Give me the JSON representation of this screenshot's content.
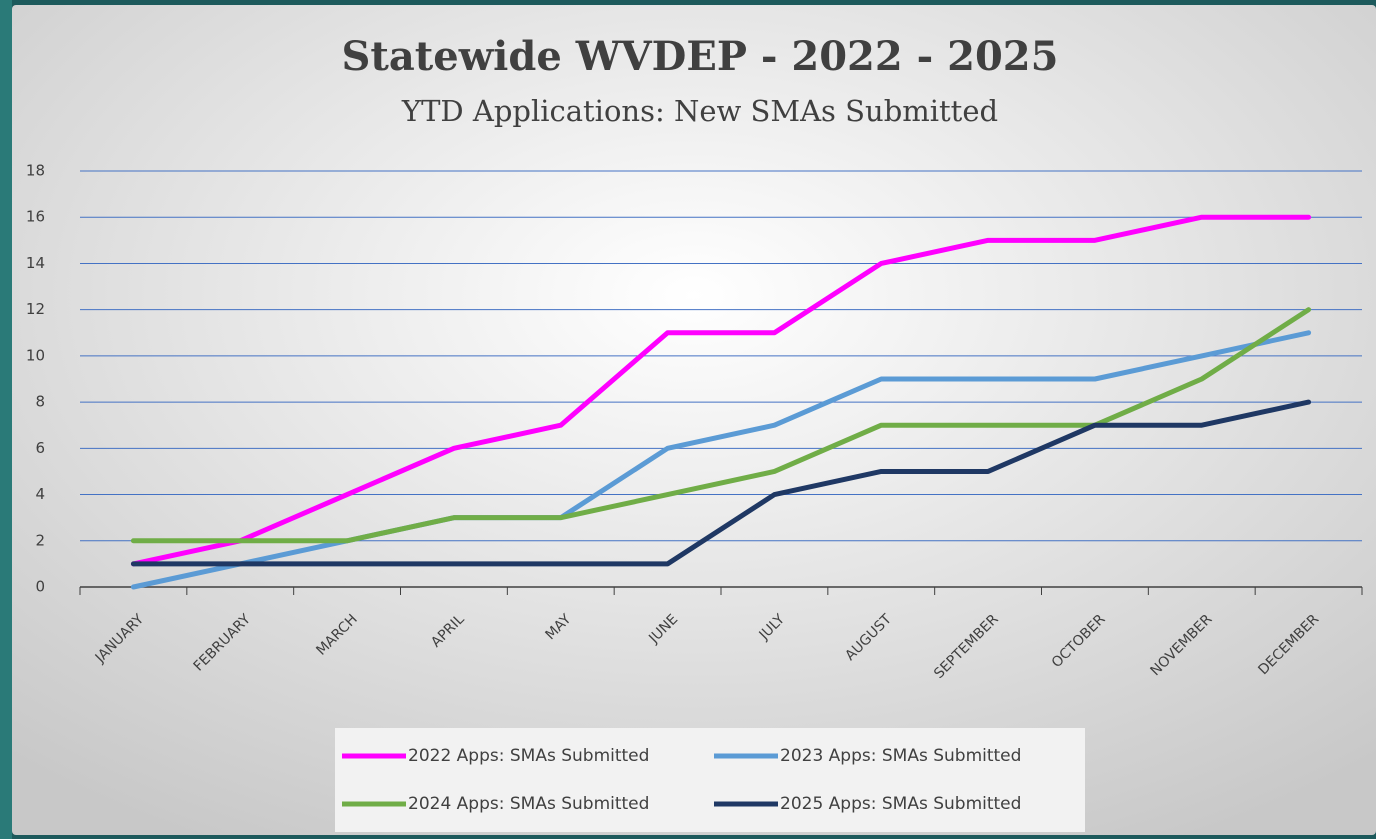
{
  "chart_data": {
    "type": "line",
    "title": "Statewide WVDEP - 2022 - 2025",
    "subtitle": "YTD Applications: New SMAs Submitted",
    "categories": [
      "JANUARY",
      "FEBRUARY",
      "MARCH",
      "APRIL",
      "MAY",
      "JUNE",
      "JULY",
      "AUGUST",
      "SEPTEMBER",
      "OCTOBER",
      "NOVEMBER",
      "DECEMBER"
    ],
    "series": [
      {
        "name": "2022 Apps: SMAs Submitted",
        "color": "#ff00ff",
        "values": [
          1,
          2,
          4,
          6,
          7,
          11,
          11,
          14,
          15,
          15,
          16,
          16
        ]
      },
      {
        "name": "2023 Apps: SMAs Submitted",
        "color": "#5b9bd5",
        "values": [
          0,
          1,
          2,
          3,
          3,
          6,
          7,
          9,
          9,
          9,
          10,
          11
        ]
      },
      {
        "name": "2024 Apps: SMAs Submitted",
        "color": "#70ad47",
        "values": [
          2,
          2,
          2,
          3,
          3,
          4,
          5,
          7,
          7,
          7,
          9,
          12
        ]
      },
      {
        "name": "2025 Apps: SMAs Submitted",
        "color": "#1f3864",
        "values": [
          1,
          1,
          1,
          1,
          1,
          1,
          4,
          5,
          5,
          7,
          7,
          8
        ]
      }
    ],
    "ylim": [
      0,
      18
    ],
    "yticks": [
      0,
      2,
      4,
      6,
      8,
      10,
      12,
      14,
      16,
      18
    ],
    "grid": true,
    "legend": "bottom"
  }
}
